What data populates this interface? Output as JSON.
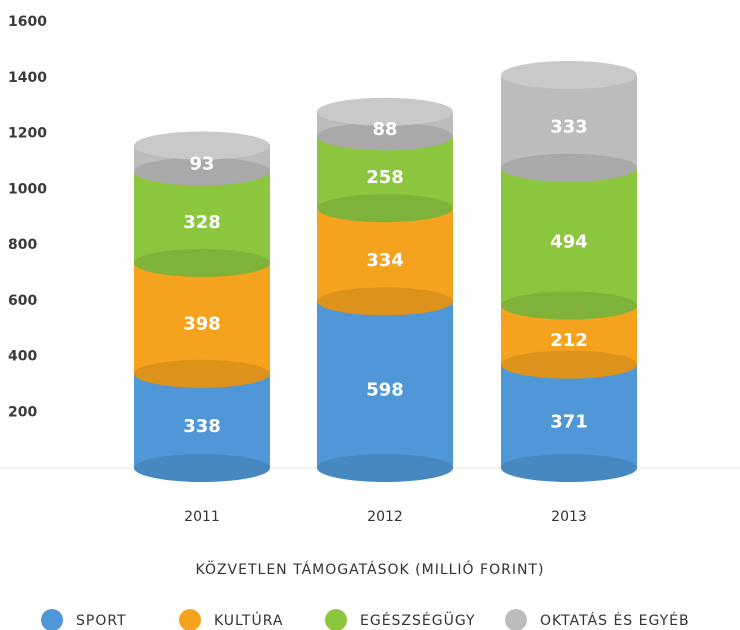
{
  "chart_data": {
    "type": "stacked-cylinder",
    "x_label": "KÖZVETLEN TÁMOGATÁSOK (MILLIÓ FORINT)",
    "categories": [
      "2011",
      "2012",
      "2013"
    ],
    "series": [
      {
        "name": "SPORT",
        "color": "#4f97d6",
        "values": [
          338,
          598,
          371
        ]
      },
      {
        "name": "KULTÚRA",
        "color": "#f5a21f",
        "values": [
          398,
          334,
          212
        ]
      },
      {
        "name": "EGÉSZSÉGÜGY",
        "color": "#8cc63f",
        "values": [
          328,
          258,
          494
        ]
      },
      {
        "name": "OKTATÁS ÉS EGYÉB",
        "color": "#bcbcbc",
        "values": [
          93,
          88,
          333
        ]
      }
    ],
    "ylim": [
      0,
      1600
    ],
    "yticks": [
      200,
      400,
      600,
      800,
      1000,
      1200,
      1400,
      1600
    ],
    "grid": false,
    "legend": "bottom"
  }
}
